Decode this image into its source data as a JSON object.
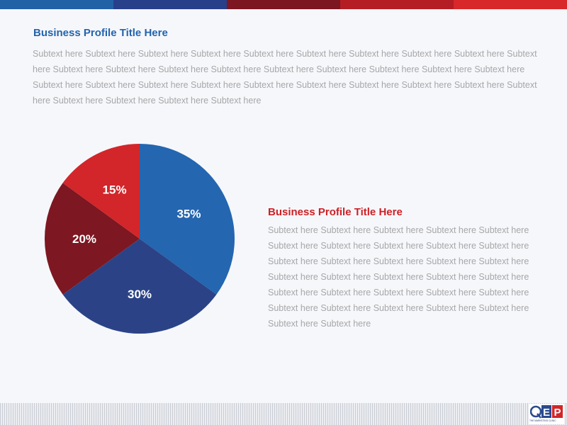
{
  "header_bar": {
    "colors": [
      "#2361a7",
      "#283f8a",
      "#7c1620",
      "#b51d25",
      "#d82829"
    ]
  },
  "section1": {
    "title": "Business Profile Title Here",
    "body": "Subtext here Subtext here Subtext here Subtext here Subtext here Subtext here Subtext here Subtext here Subtext here Subtext here Subtext here Subtext here Subtext here Subtext here Subtext here Subtext here Subtext here Subtext here Subtext here Subtext here Subtext here Subtext here Subtext here Subtext here Subtext here Subtext here Subtext here Subtext here Subtext here Subtext here Subtext here Subtext here Subtext here"
  },
  "section2": {
    "title": "Business Profile Title Here",
    "body": "Subtext here Subtext here Subtext here Subtext here Subtext here Subtext here Subtext here Subtext here Subtext here Subtext here Subtext here Subtext here Subtext here Subtext here Subtext here Subtext here Subtext here Subtext here Subtext here Subtext here Subtext here Subtext here Subtext here Subtext here Subtext here Subtext here Subtext here Subtext here Subtext here Subtext here Subtext here Subtext here"
  },
  "logo": {
    "mark": "QEP",
    "caption": "THE MARKETING CLINIC"
  },
  "chart_data": {
    "type": "pie",
    "slices": [
      {
        "label": "35%",
        "value": 35,
        "color": "#2466b0"
      },
      {
        "label": "30%",
        "value": 30,
        "color": "#2b4386"
      },
      {
        "label": "20%",
        "value": 20,
        "color": "#7d1721"
      },
      {
        "label": "15%",
        "value": 15,
        "color": "#d2262a"
      }
    ]
  }
}
